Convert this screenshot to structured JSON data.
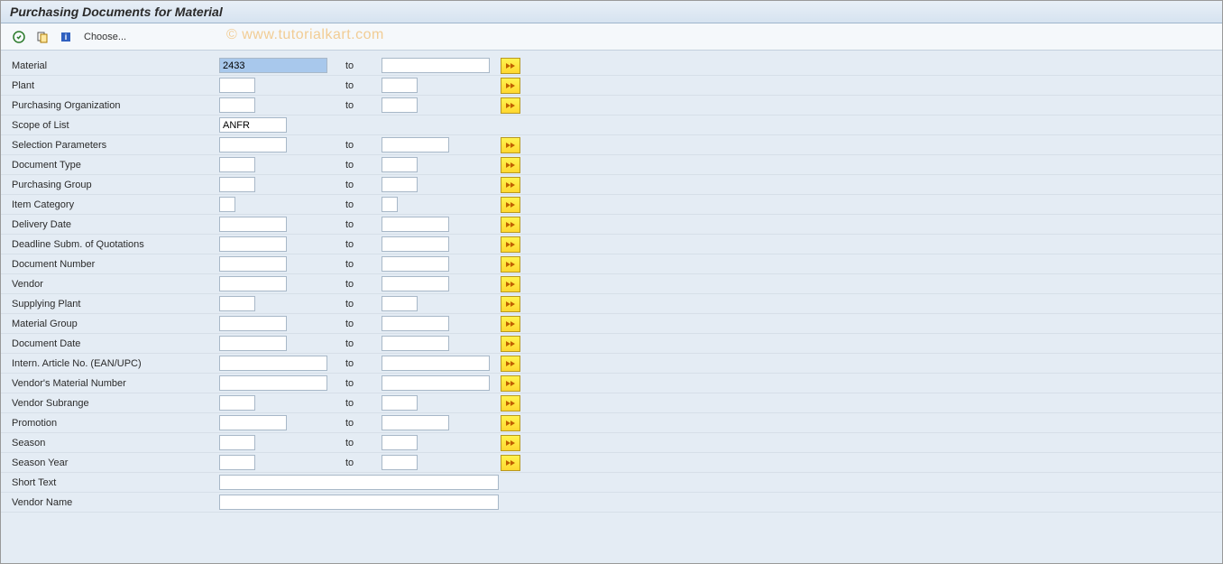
{
  "title": "Purchasing Documents for Material",
  "toolbar": {
    "choose_label": "Choose...",
    "watermark": "© www.tutorialkart.com"
  },
  "colors": {
    "title_bg_top": "#e8eff7",
    "title_bg_bottom": "#d6e3f0",
    "content_bg": "#e4ecf4",
    "row_border": "#d6dfe8",
    "more_btn_top": "#fff34f",
    "more_btn_bottom": "#ffd830",
    "more_btn_border": "#b89820",
    "input_border": "#a8b8c8",
    "selected_bg": "#a8c8ec"
  },
  "labels": {
    "to": "to"
  },
  "fields": {
    "material": {
      "label": "Material",
      "from": "2433",
      "to": "",
      "from_w": "w-full",
      "to_w": "w-full",
      "has_to": true,
      "has_more": true,
      "selected": true
    },
    "plant": {
      "label": "Plant",
      "from": "",
      "to": "",
      "from_w": "w-sm",
      "to_w": "w-sm",
      "has_to": true,
      "has_more": true
    },
    "porg": {
      "label": "Purchasing Organization",
      "from": "",
      "to": "",
      "from_w": "w-sm",
      "to_w": "w-sm",
      "has_to": true,
      "has_more": true
    },
    "scope": {
      "label": "Scope of List",
      "from": "ANFR",
      "from_w": "w-md",
      "has_to": false,
      "has_more": false
    },
    "selparam": {
      "label": "Selection Parameters",
      "from": "",
      "to": "",
      "from_w": "w-md",
      "to_w": "w-md",
      "has_to": true,
      "has_more": true
    },
    "doctype": {
      "label": "Document Type",
      "from": "",
      "to": "",
      "from_w": "w-sm",
      "to_w": "w-sm",
      "has_to": true,
      "has_more": true
    },
    "pgrp": {
      "label": "Purchasing Group",
      "from": "",
      "to": "",
      "from_w": "w-sm",
      "to_w": "w-sm",
      "has_to": true,
      "has_more": true
    },
    "itemcat": {
      "label": "Item Category",
      "from": "",
      "to": "",
      "from_w": "w-xs",
      "to_w": "w-xs",
      "has_to": true,
      "has_more": true
    },
    "deldate": {
      "label": "Delivery Date",
      "from": "",
      "to": "",
      "from_w": "w-md",
      "to_w": "w-md",
      "has_to": true,
      "has_more": true
    },
    "deadline": {
      "label": "Deadline Subm. of Quotations",
      "from": "",
      "to": "",
      "from_w": "w-md",
      "to_w": "w-md",
      "has_to": true,
      "has_more": true
    },
    "docnum": {
      "label": "Document Number",
      "from": "",
      "to": "",
      "from_w": "w-md",
      "to_w": "w-md",
      "has_to": true,
      "has_more": true
    },
    "vendor": {
      "label": "Vendor",
      "from": "",
      "to": "",
      "from_w": "w-md",
      "to_w": "w-md",
      "has_to": true,
      "has_more": true
    },
    "splant": {
      "label": "Supplying Plant",
      "from": "",
      "to": "",
      "from_w": "w-sm",
      "to_w": "w-sm",
      "has_to": true,
      "has_more": true
    },
    "matgrp": {
      "label": "Material Group",
      "from": "",
      "to": "",
      "from_w": "w-md",
      "to_w": "w-md",
      "has_to": true,
      "has_more": true
    },
    "docdate": {
      "label": "Document Date",
      "from": "",
      "to": "",
      "from_w": "w-md",
      "to_w": "w-md",
      "has_to": true,
      "has_more": true
    },
    "ean": {
      "label": "Intern. Article No. (EAN/UPC)",
      "from": "",
      "to": "",
      "from_w": "w-full",
      "to_w": "w-full",
      "has_to": true,
      "has_more": true
    },
    "vmatnum": {
      "label": "Vendor's Material Number",
      "from": "",
      "to": "",
      "from_w": "w-full",
      "to_w": "w-full",
      "has_to": true,
      "has_more": true
    },
    "vsubrange": {
      "label": "Vendor Subrange",
      "from": "",
      "to": "",
      "from_w": "w-sm",
      "to_w": "w-sm",
      "has_to": true,
      "has_more": true
    },
    "promotion": {
      "label": "Promotion",
      "from": "",
      "to": "",
      "from_w": "w-md",
      "to_w": "w-md",
      "has_to": true,
      "has_more": true
    },
    "season": {
      "label": "Season",
      "from": "",
      "to": "",
      "from_w": "w-sm",
      "to_w": "w-sm",
      "has_to": true,
      "has_more": true
    },
    "seasonyr": {
      "label": "Season Year",
      "from": "",
      "to": "",
      "from_w": "w-sm",
      "to_w": "w-sm",
      "has_to": true,
      "has_more": true
    },
    "shorttext": {
      "label": "Short Text",
      "from": "",
      "from_w": "w-lg",
      "has_to": false,
      "has_more": false
    },
    "vendorname": {
      "label": "Vendor Name",
      "from": "",
      "from_w": "w-lg",
      "has_to": false,
      "has_more": false
    }
  },
  "field_order": [
    "material",
    "plant",
    "porg",
    "scope",
    "selparam",
    "doctype",
    "pgrp",
    "itemcat",
    "deldate",
    "deadline",
    "docnum",
    "vendor",
    "splant",
    "matgrp",
    "docdate",
    "ean",
    "vmatnum",
    "vsubrange",
    "promotion",
    "season",
    "seasonyr",
    "shorttext",
    "vendorname"
  ]
}
